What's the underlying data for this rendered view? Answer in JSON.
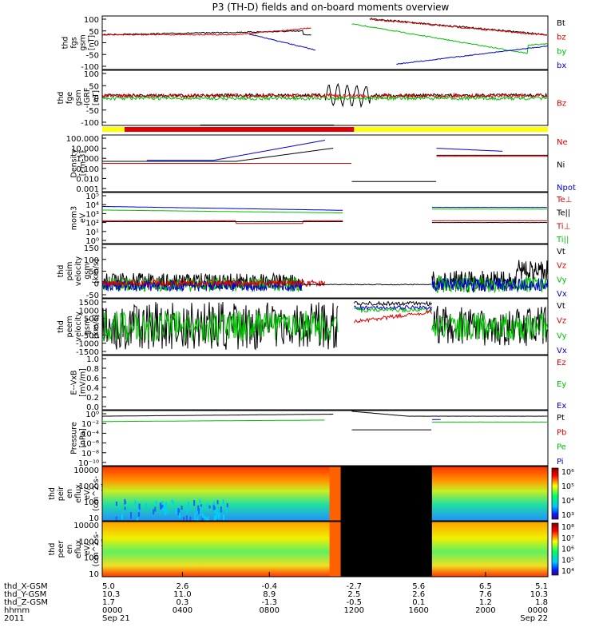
{
  "title": "P3 (TH-D) fields and on-board moments overview",
  "colors": {
    "black": "#000000",
    "red": "#e00000",
    "green": "#00c000",
    "blue": "#0000d0",
    "yellow": "#ffff00"
  },
  "chart_data": [
    {
      "type": "line",
      "id": "fgs",
      "ylabel_lines": [
        "thd",
        "fgs",
        "gsm",
        "[nT]"
      ],
      "ylim": [
        -100,
        100
      ],
      "yticks": [
        "100",
        "50",
        "0",
        "-50",
        "-100"
      ],
      "legend": [
        {
          "name": "Bt",
          "color": "#000000"
        },
        {
          "name": "bz",
          "color": "#e00000"
        },
        {
          "name": "by",
          "color": "#00c000"
        },
        {
          "name": "bx",
          "color": "#0000d0"
        }
      ]
    },
    {
      "type": "line",
      "id": "fgs_dc",
      "ylabel_lines": [
        "thd",
        "fge",
        "gsm",
        "-IGRF",
        "[nT]"
      ],
      "ylim": [
        -120,
        100
      ],
      "yticks": [
        "100",
        "50",
        "0",
        "-50",
        "-100"
      ],
      "legend": [
        {
          "name": "Bz",
          "color": "#e00000"
        }
      ]
    },
    {
      "type": "line",
      "id": "density",
      "ylabel_lines": [
        "Density",
        "[cm-3]"
      ],
      "yscale": "log",
      "yticks": [
        "100.000",
        "10.000",
        "1.000",
        "0.100",
        "0.010",
        "0.001"
      ],
      "legend": [
        {
          "name": "Ne",
          "color": "#e00000"
        },
        {
          "name": "Ni",
          "color": "#000000"
        },
        {
          "name": "Npot",
          "color": "#0000d0"
        }
      ]
    },
    {
      "type": "line",
      "id": "temp",
      "ylabel_lines": [
        "mom3",
        "eV"
      ],
      "yscale": "log",
      "yticks": [
        "10⁵",
        "10⁴",
        "10³",
        "10²",
        "10¹",
        "10⁰"
      ],
      "legend": [
        {
          "name": "Te⊥",
          "color": "#e00000"
        },
        {
          "name": "Te||",
          "color": "#000000"
        },
        {
          "name": "Ti⊥",
          "color": "#e00000"
        },
        {
          "name": "Ti||",
          "color": "#00c000"
        }
      ]
    },
    {
      "type": "line",
      "id": "peim_v",
      "ylabel_lines": [
        "thd",
        "peim",
        "velocity",
        "gsm",
        "[km/s]"
      ],
      "ylim": [
        -50,
        150
      ],
      "yticks": [
        "150",
        "100",
        "50",
        "0",
        "-50"
      ],
      "legend": [
        {
          "name": "Vt",
          "color": "#000000"
        },
        {
          "name": "Vz",
          "color": "#e00000"
        },
        {
          "name": "Vy",
          "color": "#00c000"
        },
        {
          "name": "Vx",
          "color": "#0000d0"
        }
      ]
    },
    {
      "type": "line",
      "id": "peem_v",
      "ylabel_lines": [
        "thd",
        "peem",
        "velocity",
        "gsm",
        "[km/s]"
      ],
      "ylim": [
        -1500,
        1500
      ],
      "yticks": [
        "1500",
        "1000",
        "500",
        "0",
        "-500",
        "-1000",
        "-1500"
      ],
      "legend": [
        {
          "name": "Vt",
          "color": "#000000"
        },
        {
          "name": "Vz",
          "color": "#e00000"
        },
        {
          "name": "Vy",
          "color": "#00c000"
        },
        {
          "name": "Vx",
          "color": "#0000d0"
        }
      ]
    },
    {
      "type": "line",
      "id": "efield",
      "ylabel_lines": [
        "E--VxB",
        "[mV/m]"
      ],
      "ylim": [
        0,
        1
      ],
      "yticks": [
        "1.0",
        "0.8",
        "0.6",
        "0.4",
        "0.2",
        "0.0"
      ],
      "legend": [
        {
          "name": "Ez",
          "color": "#e00000"
        },
        {
          "name": "Ey",
          "color": "#00c000"
        },
        {
          "name": "Ex",
          "color": "#0000d0"
        }
      ]
    },
    {
      "type": "line",
      "id": "pressure",
      "ylabel_lines": [
        "Pressure",
        "[nPa]"
      ],
      "yscale": "log",
      "yticks": [
        "10⁰",
        "10⁻²",
        "10⁻⁴",
        "10⁻⁶",
        "10⁻⁸",
        "10⁻¹⁰"
      ],
      "legend": [
        {
          "name": "Pt",
          "color": "#000000"
        },
        {
          "name": "Pb",
          "color": "#e00000"
        },
        {
          "name": "Pe",
          "color": "#00c000"
        },
        {
          "name": "Pi",
          "color": "#0000d0"
        }
      ]
    },
    {
      "type": "heatmap",
      "id": "peir",
      "ylabel_lines": [
        "thd",
        "peir",
        "en",
        "eflux",
        "eV/",
        "(cm^2-s-",
        "sr-eV)"
      ],
      "yticks": [
        "10000",
        "1000",
        "100",
        "10"
      ],
      "colorbar": [
        "10⁶",
        "10⁵",
        "10⁴",
        "10³"
      ]
    },
    {
      "type": "heatmap",
      "id": "peer",
      "ylabel_lines": [
        "thd",
        "peer",
        "en",
        "eflux",
        "eV/",
        "(cm^2-s-",
        "sr-eV)"
      ],
      "yticks": [
        "10000",
        "1000",
        "100",
        "10"
      ],
      "colorbar": [
        "10⁸",
        "10⁷",
        "10⁶",
        "10⁵",
        "10⁴"
      ]
    }
  ],
  "footer": {
    "labels": [
      "thd_X-GSM",
      "thd_Y-GSM",
      "thd_Z-GSM",
      "hhmm",
      "2011"
    ],
    "x_gsm": [
      "5.0",
      "2.6",
      "-0.4",
      "-2.7",
      "5.6",
      "6.5",
      "5.1"
    ],
    "y_gsm": [
      "10.3",
      "11.0",
      "8.9",
      "2.5",
      "2.6",
      "7.6",
      "10.3"
    ],
    "z_gsm": [
      "1.7",
      "0.3",
      "-1.3",
      "-0.5",
      "0.1",
      "1.2",
      "1.8"
    ],
    "hhmm": [
      "0000",
      "0400",
      "0800",
      "1200",
      "1600",
      "2000",
      "0000"
    ],
    "dates": [
      "Sep 21",
      "Sep 22"
    ]
  }
}
